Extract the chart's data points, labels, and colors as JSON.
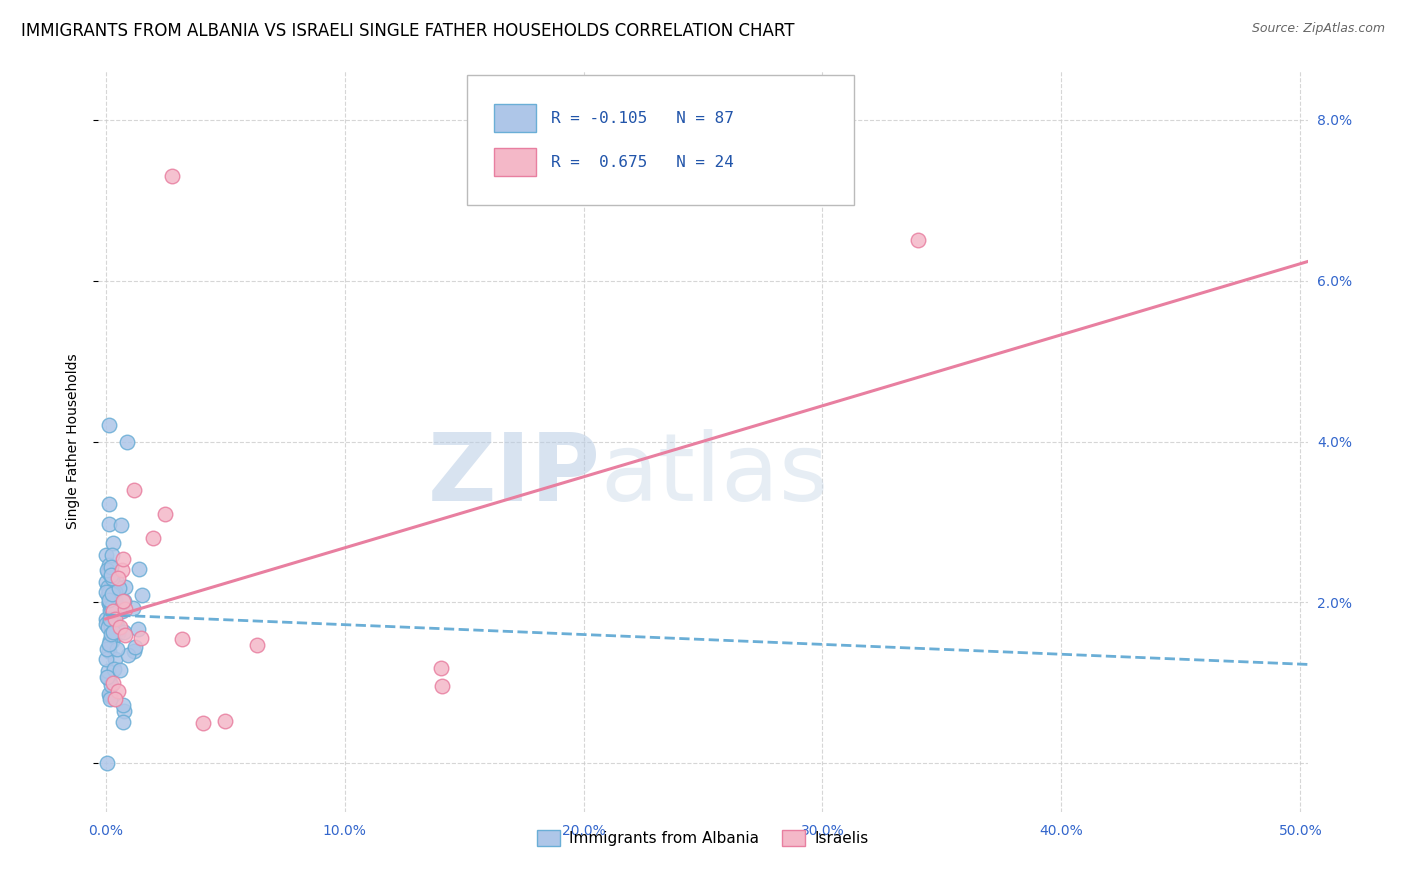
{
  "title": "IMMIGRANTS FROM ALBANIA VS ISRAELI SINGLE FATHER HOUSEHOLDS CORRELATION CHART",
  "source": "Source: ZipAtlas.com",
  "ylabel": "Single Father Households",
  "xlim": [
    -0.003,
    0.503
  ],
  "ylim": [
    -0.006,
    0.086
  ],
  "xticks": [
    0.0,
    0.1,
    0.2,
    0.3,
    0.4,
    0.5
  ],
  "xtick_labels": [
    "0.0%",
    "10.0%",
    "20.0%",
    "30.0%",
    "40.0%",
    "50.0%"
  ],
  "yticks": [
    0.0,
    0.02,
    0.04,
    0.06,
    0.08
  ],
  "ytick_labels": [
    "",
    "2.0%",
    "4.0%",
    "6.0%",
    "8.0%"
  ],
  "albania_color": "#aec6e8",
  "albania_edge_color": "#6aaed6",
  "israel_color": "#f4b8c8",
  "israel_edge_color": "#e87fa0",
  "albania_R": -0.105,
  "albania_N": 87,
  "israel_R": 0.675,
  "israel_N": 24,
  "legend_label_albania": "Immigrants from Albania",
  "legend_label_israel": "Israelis",
  "watermark_zip": "ZIP",
  "watermark_atlas": "atlas",
  "title_fontsize": 12,
  "axis_label_fontsize": 10,
  "tick_fontsize": 10,
  "tick_color": "#3366cc",
  "source_color": "#666666"
}
